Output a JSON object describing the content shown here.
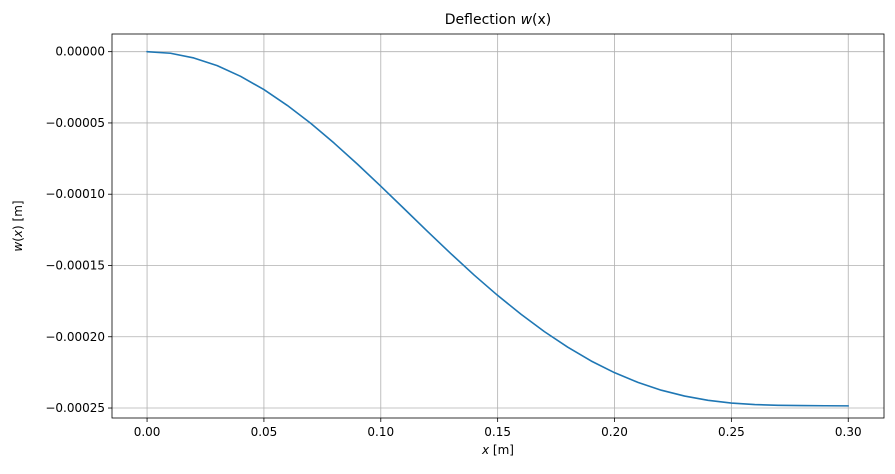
{
  "chart_data": {
    "type": "line",
    "title": "Deflection w(x)",
    "title_parts": {
      "prefix": "Deflection ",
      "var": "w",
      "args": "(x)"
    },
    "xlabel": "x [m]",
    "xlabel_parts": {
      "var": "x",
      "unit": " [m]"
    },
    "ylabel": "w(x) [m]",
    "ylabel_parts": {
      "var": "w",
      "args": "(",
      "inner": "x",
      "close": ")",
      "unit": " [m]"
    },
    "xlim": [
      -0.015,
      0.3153
    ],
    "ylim": [
      -0.000257,
      1.24e-05
    ],
    "grid": true,
    "x_ticks": [
      0.0,
      0.05,
      0.1,
      0.15,
      0.2,
      0.25,
      0.3
    ],
    "x_tick_labels": [
      "0.00",
      "0.05",
      "0.10",
      "0.15",
      "0.20",
      "0.25",
      "0.30"
    ],
    "y_ticks": [
      0.0,
      -5e-05,
      -0.0001,
      -0.00015,
      -0.0002,
      -0.00025
    ],
    "y_tick_labels": [
      "0.00000",
      "−0.00005",
      "−0.00010",
      "−0.00015",
      "−0.00020",
      "−0.00025"
    ],
    "series": [
      {
        "color": "#1f77b4",
        "x": [
          0.0,
          0.01,
          0.02,
          0.03,
          0.04,
          0.05,
          0.06,
          0.07,
          0.08,
          0.09,
          0.1,
          0.11,
          0.12,
          0.13,
          0.14,
          0.15,
          0.16,
          0.17,
          0.18,
          0.19,
          0.2,
          0.21,
          0.22,
          0.23,
          0.24,
          0.25,
          0.26,
          0.27,
          0.28,
          0.29,
          0.3
        ],
        "y": [
          0.0,
          -1.1e-06,
          -4.4e-06,
          -9.8e-06,
          -1.73e-05,
          -2.66e-05,
          -3.77e-05,
          -5.02e-05,
          -6.41e-05,
          -7.89e-05,
          -9.44e-05,
          -0.0001102,
          -0.0001261,
          -0.0001417,
          -0.0001568,
          -0.000171,
          -0.0001842,
          -0.0001964,
          -0.0002073,
          -0.000217,
          -0.0002252,
          -0.000232,
          -0.0002375,
          -0.0002416,
          -0.0002446,
          -0.0002465,
          -0.0002476,
          -0.0002481,
          -0.0002483,
          -0.0002484,
          -0.0002485
        ]
      }
    ]
  }
}
